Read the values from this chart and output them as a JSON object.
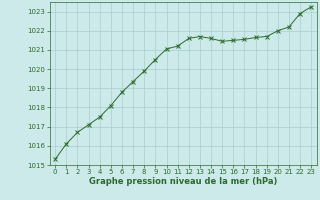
{
  "x": [
    0,
    1,
    2,
    3,
    4,
    5,
    6,
    7,
    8,
    9,
    10,
    11,
    12,
    13,
    14,
    15,
    16,
    17,
    18,
    19,
    20,
    21,
    22,
    23
  ],
  "y": [
    1015.3,
    1016.1,
    1016.7,
    1017.1,
    1017.5,
    1018.1,
    1018.8,
    1019.35,
    1019.9,
    1020.5,
    1021.05,
    1021.2,
    1021.6,
    1021.7,
    1021.6,
    1021.45,
    1021.5,
    1021.55,
    1021.65,
    1021.7,
    1022.0,
    1022.2,
    1022.9,
    1023.25
  ],
  "line_color": "#2d6a2d",
  "marker": "x",
  "marker_color": "#2d6a2d",
  "bg_color": "#cceaea",
  "grid_color": "#aacccc",
  "xlabel": "Graphe pression niveau de la mer (hPa)",
  "xlabel_color": "#2d6a2d",
  "tick_color": "#2d6a2d",
  "ylim": [
    1015,
    1023.5
  ],
  "xlim": [
    -0.5,
    23.5
  ],
  "yticks": [
    1015,
    1016,
    1017,
    1018,
    1019,
    1020,
    1021,
    1022,
    1023
  ],
  "xticks": [
    0,
    1,
    2,
    3,
    4,
    5,
    6,
    7,
    8,
    9,
    10,
    11,
    12,
    13,
    14,
    15,
    16,
    17,
    18,
    19,
    20,
    21,
    22,
    23
  ],
  "linewidth": 0.7,
  "markersize": 2.5,
  "markeredgewidth": 0.7,
  "tick_labelsize": 5.0,
  "xlabel_fontsize": 6.0
}
